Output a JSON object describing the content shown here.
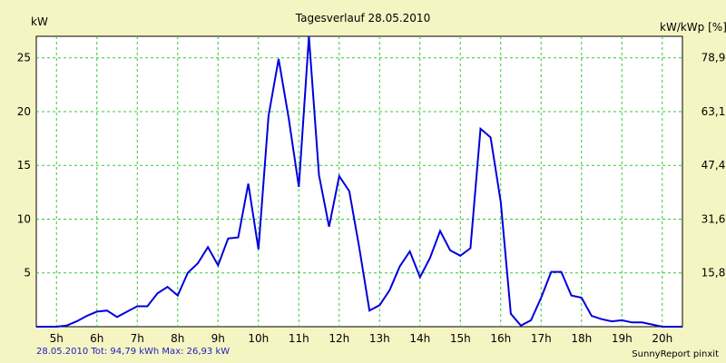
{
  "chart_data": {
    "type": "line",
    "title": "Tagesverlauf 28.05.2010",
    "ylabel_left": "kW",
    "ylabel_right": "kW/kWp [%]",
    "x_ticks": [
      "5h",
      "6h",
      "7h",
      "8h",
      "9h",
      "10h",
      "11h",
      "12h",
      "13h",
      "14h",
      "15h",
      "16h",
      "17h",
      "18h",
      "19h",
      "20h"
    ],
    "y_ticks_left": [
      "5",
      "10",
      "15",
      "20",
      "25"
    ],
    "y_ticks_right": [
      "15,8",
      "31,6",
      "47,4",
      "63,1",
      "78,9"
    ],
    "x_range": [
      4.5,
      20.5
    ],
    "ylim": [
      0,
      27
    ],
    "grid": true,
    "colors": {
      "background": "#f5f5c3",
      "plot_background": "#ffffff",
      "grid": "#33cc33",
      "series": "#0000dd"
    },
    "series": [
      {
        "values": [
          [
            4.5,
            0
          ],
          [
            4.75,
            0
          ],
          [
            5.0,
            0
          ],
          [
            5.25,
            0.1
          ],
          [
            5.5,
            0.5
          ],
          [
            5.75,
            1.0
          ],
          [
            6.0,
            1.4
          ],
          [
            6.25,
            1.5
          ],
          [
            6.5,
            0.9
          ],
          [
            6.75,
            1.4
          ],
          [
            7.0,
            1.9
          ],
          [
            7.25,
            1.9
          ],
          [
            7.5,
            3.1
          ],
          [
            7.75,
            3.7
          ],
          [
            8.0,
            2.9
          ],
          [
            8.25,
            5.0
          ],
          [
            8.5,
            5.9
          ],
          [
            8.75,
            7.4
          ],
          [
            9.0,
            5.7
          ],
          [
            9.25,
            8.2
          ],
          [
            9.5,
            8.3
          ],
          [
            9.75,
            13.3
          ],
          [
            10.0,
            7.2
          ],
          [
            10.25,
            19.6
          ],
          [
            10.5,
            24.9
          ],
          [
            10.75,
            19.4
          ],
          [
            11.0,
            13.0
          ],
          [
            11.25,
            27.2
          ],
          [
            11.5,
            14.1
          ],
          [
            11.75,
            9.3
          ],
          [
            12.0,
            14.0
          ],
          [
            12.25,
            12.6
          ],
          [
            12.5,
            7.3
          ],
          [
            12.75,
            1.5
          ],
          [
            13.0,
            2.0
          ],
          [
            13.25,
            3.4
          ],
          [
            13.5,
            5.6
          ],
          [
            13.75,
            7.0
          ],
          [
            14.0,
            4.6
          ],
          [
            14.25,
            6.4
          ],
          [
            14.5,
            8.9
          ],
          [
            14.75,
            7.1
          ],
          [
            15.0,
            6.6
          ],
          [
            15.25,
            7.3
          ],
          [
            15.5,
            18.4
          ],
          [
            15.75,
            17.6
          ],
          [
            16.0,
            11.6
          ],
          [
            16.25,
            1.2
          ],
          [
            16.5,
            0.1
          ],
          [
            16.75,
            0.6
          ],
          [
            17.0,
            2.7
          ],
          [
            17.25,
            5.1
          ],
          [
            17.5,
            5.1
          ],
          [
            17.75,
            2.9
          ],
          [
            18.0,
            2.7
          ],
          [
            18.25,
            1.0
          ],
          [
            18.5,
            0.7
          ],
          [
            18.75,
            0.5
          ],
          [
            19.0,
            0.6
          ],
          [
            19.25,
            0.4
          ],
          [
            19.5,
            0.4
          ],
          [
            19.75,
            0.2
          ],
          [
            20.0,
            0
          ],
          [
            20.5,
            0
          ]
        ]
      }
    ],
    "footer_left": "28.05.2010 Tot: 94,79 kWh Max: 26,93 kW",
    "footer_right": "SunnyReport pinxit"
  }
}
